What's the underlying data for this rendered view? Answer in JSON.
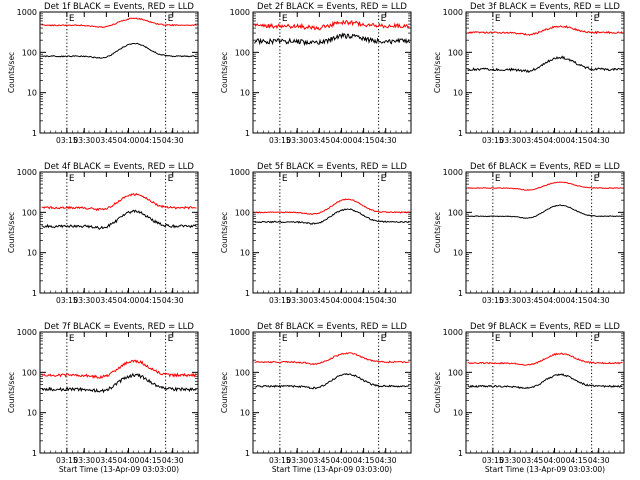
{
  "chart_data": [
    {
      "type": "line",
      "title": "Det 1f BLACK = Events, RED = LLD",
      "xlabel": "",
      "ylabel": "Counts/sec",
      "marker_label": "E",
      "yscale": "log",
      "ylim": [
        1,
        1000
      ],
      "yticks": [
        "1",
        "10",
        "100",
        "1000"
      ],
      "xticks": [
        "03:15",
        "03:30",
        "03:45",
        "04:00",
        "04:15",
        "04:30"
      ],
      "series": [
        {
          "color": "#ff0000",
          "base": 470,
          "peak": 700,
          "noise": 0.03
        },
        {
          "color": "#000000",
          "base": 80,
          "peak": 165,
          "noise": 0.03
        }
      ]
    },
    {
      "type": "line",
      "title": "Det 2f BLACK = Events, RED = LLD",
      "xlabel": "",
      "ylabel": "Counts/sec",
      "marker_label": "E",
      "yscale": "log",
      "ylim": [
        1,
        1000
      ],
      "yticks": [
        "1",
        "10",
        "100",
        "1000"
      ],
      "xticks": [
        "03:15",
        "03:30",
        "03:45",
        "04:00",
        "04:15",
        "04:30"
      ],
      "series": [
        {
          "color": "#ff0000",
          "base": 450,
          "peak": 560,
          "noise": 0.12
        },
        {
          "color": "#000000",
          "base": 190,
          "peak": 260,
          "noise": 0.14
        }
      ]
    },
    {
      "type": "line",
      "title": "Det 3f BLACK = Events, RED = LLD",
      "xlabel": "",
      "ylabel": "Counts/sec",
      "marker_label": "E",
      "yscale": "log",
      "ylim": [
        1,
        1000
      ],
      "yticks": [
        "1",
        "10",
        "100",
        "1000"
      ],
      "xticks": [
        "03:15",
        "03:30",
        "03:45",
        "04:00",
        "04:15",
        "04:30"
      ],
      "series": [
        {
          "color": "#ff0000",
          "base": 310,
          "peak": 440,
          "noise": 0.05
        },
        {
          "color": "#000000",
          "base": 38,
          "peak": 75,
          "noise": 0.07
        }
      ]
    },
    {
      "type": "line",
      "title": "Det 4f BLACK = Events, RED = LLD",
      "xlabel": "",
      "ylabel": "Counts/sec",
      "marker_label": "E",
      "yscale": "log",
      "ylim": [
        1,
        1000
      ],
      "yticks": [
        "1",
        "10",
        "100",
        "1000"
      ],
      "xticks": [
        "03:15",
        "03:30",
        "03:45",
        "04:00",
        "04:15",
        "04:30"
      ],
      "series": [
        {
          "color": "#ff0000",
          "base": 130,
          "peak": 280,
          "noise": 0.06
        },
        {
          "color": "#000000",
          "base": 45,
          "peak": 105,
          "noise": 0.08
        }
      ]
    },
    {
      "type": "line",
      "title": "Det 5f BLACK = Events, RED = LLD",
      "xlabel": "",
      "ylabel": "Counts/sec",
      "marker_label": "E",
      "yscale": "log",
      "ylim": [
        1,
        1000
      ],
      "yticks": [
        "1",
        "10",
        "100",
        "1000"
      ],
      "xticks": [
        "03:15",
        "03:30",
        "03:45",
        "04:00",
        "04:15",
        "04:30"
      ],
      "series": [
        {
          "color": "#ff0000",
          "base": 100,
          "peak": 210,
          "noise": 0.03
        },
        {
          "color": "#000000",
          "base": 58,
          "peak": 120,
          "noise": 0.04
        }
      ]
    },
    {
      "type": "line",
      "title": "Det 6f BLACK = Events, RED = LLD",
      "xlabel": "",
      "ylabel": "Counts/sec",
      "marker_label": "E",
      "yscale": "log",
      "ylim": [
        1,
        1000
      ],
      "yticks": [
        "1",
        "10",
        "100",
        "1000"
      ],
      "xticks": [
        "03:15",
        "03:30",
        "03:45",
        "04:00",
        "04:15",
        "04:30"
      ],
      "series": [
        {
          "color": "#ff0000",
          "base": 400,
          "peak": 560,
          "noise": 0.02
        },
        {
          "color": "#000000",
          "base": 80,
          "peak": 150,
          "noise": 0.02
        }
      ]
    },
    {
      "type": "line",
      "title": "Det 7f BLACK = Events, RED = LLD",
      "xlabel": "Start Time (13-Apr-09 03:03:00)",
      "ylabel": "Counts/sec",
      "marker_label": "E",
      "yscale": "log",
      "ylim": [
        1,
        1000
      ],
      "yticks": [
        "1",
        "10",
        "100",
        "1000"
      ],
      "xticks": [
        "03:15",
        "03:30",
        "03:45",
        "04:00",
        "04:15",
        "04:30"
      ],
      "series": [
        {
          "color": "#ff0000",
          "base": 85,
          "peak": 190,
          "noise": 0.08
        },
        {
          "color": "#000000",
          "base": 38,
          "peak": 85,
          "noise": 0.09
        }
      ]
    },
    {
      "type": "line",
      "title": "Det 8f BLACK = Events, RED = LLD",
      "xlabel": "Start Time (13-Apr-09 03:03:00)",
      "ylabel": "Counts/sec",
      "marker_label": "E",
      "yscale": "log",
      "ylim": [
        1,
        1000
      ],
      "yticks": [
        "1",
        "10",
        "100",
        "1000"
      ],
      "xticks": [
        "03:15",
        "03:30",
        "03:45",
        "04:00",
        "04:15",
        "04:30"
      ],
      "series": [
        {
          "color": "#ff0000",
          "base": 180,
          "peak": 300,
          "noise": 0.04
        },
        {
          "color": "#000000",
          "base": 45,
          "peak": 90,
          "noise": 0.05
        }
      ]
    },
    {
      "type": "line",
      "title": "Det 9f BLACK = Events, RED = LLD",
      "xlabel": "Start Time (13-Apr-09 03:03:00)",
      "ylabel": "Counts/sec",
      "marker_label": "E",
      "yscale": "log",
      "ylim": [
        1,
        1000
      ],
      "yticks": [
        "1",
        "10",
        "100",
        "1000"
      ],
      "xticks": [
        "03:15",
        "03:30",
        "03:45",
        "04:00",
        "04:15",
        "04:30"
      ],
      "series": [
        {
          "color": "#ff0000",
          "base": 170,
          "peak": 290,
          "noise": 0.04
        },
        {
          "color": "#000000",
          "base": 45,
          "peak": 88,
          "noise": 0.05
        }
      ]
    }
  ]
}
